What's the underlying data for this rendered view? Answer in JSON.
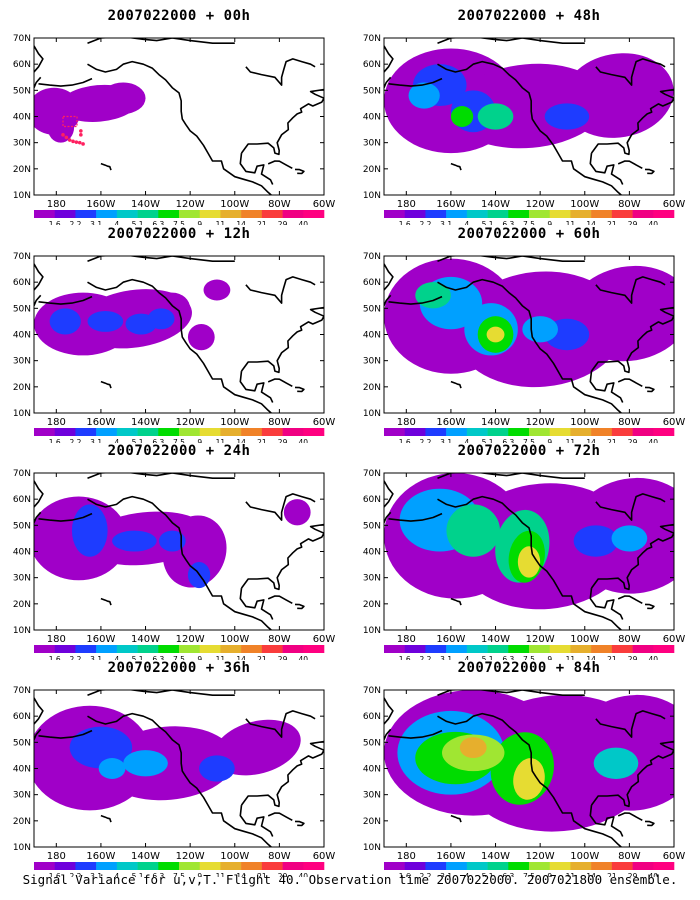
{
  "panels": [
    {
      "id": "p00",
      "title": "2007022000 + 00h",
      "step": 0
    },
    {
      "id": "p12",
      "title": "2007022000 + 12h",
      "step": 1
    },
    {
      "id": "p24",
      "title": "2007022000 + 24h",
      "step": 2
    },
    {
      "id": "p36",
      "title": "2007022000 + 36h",
      "step": 3
    },
    {
      "id": "p48",
      "title": "2007022000 + 48h",
      "step": 4
    },
    {
      "id": "p60",
      "title": "2007022000 + 60h",
      "step": 5
    },
    {
      "id": "p72",
      "title": "2007022000 + 72h",
      "step": 6
    },
    {
      "id": "p84",
      "title": "2007022000 + 84h",
      "step": 7
    }
  ],
  "lat_labels": [
    "70N",
    "60N",
    "50N",
    "40N",
    "30N",
    "20N",
    "10N"
  ],
  "lon_labels": [
    "180",
    "160W",
    "140W",
    "120W",
    "100W",
    "80W",
    "60W"
  ],
  "colorbar": {
    "levels": [
      "1.6",
      "2.2",
      "3.1",
      "4",
      "5.1",
      "6.3",
      "7.5",
      "9",
      "11",
      "14",
      "21",
      "29",
      "40"
    ],
    "colors": [
      "#a000c8",
      "#6e00dc",
      "#1e3cff",
      "#00a0ff",
      "#00c8c8",
      "#00d28c",
      "#00dc00",
      "#a0e632",
      "#e6dc32",
      "#e6af2d",
      "#f08228",
      "#fa3c3c",
      "#f00082",
      "#ff0080"
    ]
  },
  "caption": "Signal Variance for u,v,T. Flight 40. Observation time 2007022000. 2007021800 ensemble."
}
